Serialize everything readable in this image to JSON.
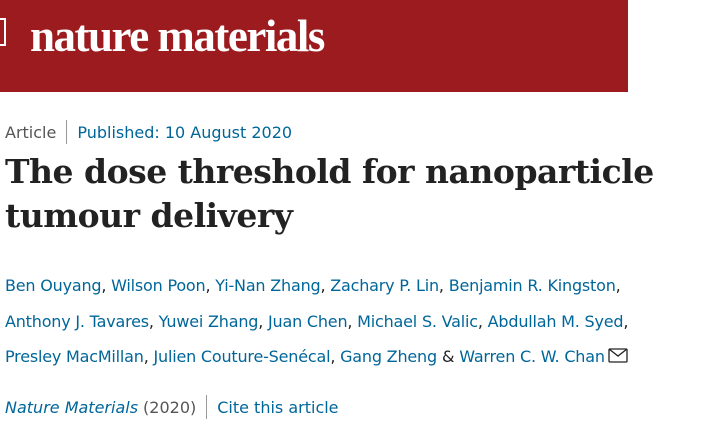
{
  "header": {
    "title": "nature materials"
  },
  "article": {
    "type": "Article",
    "published": "Published: 10 August 2020",
    "title": "The dose threshold for nanoparticle tumour delivery",
    "authors": [
      "Ben Ouyang",
      "Wilson Poon",
      "Yi-Nan Zhang",
      "Zachary P. Lin",
      "Benjamin R. Kingston",
      "Anthony J. Tavares",
      "Yuwei Zhang",
      "Juan Chen",
      "Michael S. Valic",
      "Abdullah M. Syed",
      "Presley MacMillan",
      "Julien Couture-Senécal",
      "Gang Zheng",
      "Warren C. W. Chan"
    ],
    "separator": ",",
    "conjunction": "&",
    "citation": {
      "journal": "Nature Materials",
      "year": "(2020)",
      "cite": "Cite this article"
    }
  }
}
